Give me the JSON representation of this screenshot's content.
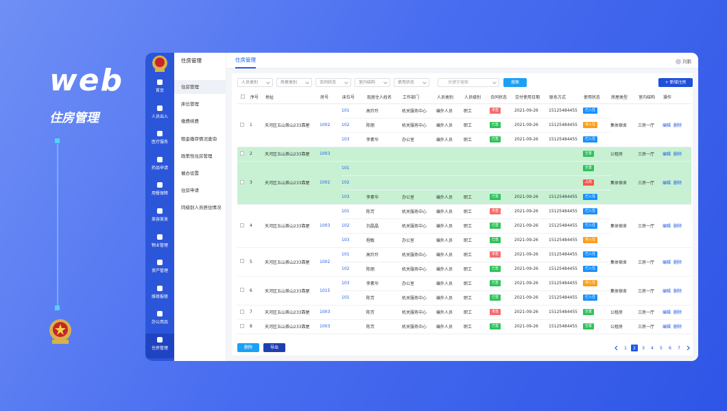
{
  "hero": {
    "title": "web",
    "subtitle": "住房管理"
  },
  "nav": [
    {
      "label": "首页"
    },
    {
      "label": "人员出入"
    },
    {
      "label": "医疗服务"
    },
    {
      "label": "药品申请"
    },
    {
      "label": "用餐保障"
    },
    {
      "label": "美容美发"
    },
    {
      "label": "物业管理"
    },
    {
      "label": "资产管理"
    },
    {
      "label": "维修报修"
    },
    {
      "label": "办公用品"
    },
    {
      "label": "住房管理",
      "active": true
    }
  ],
  "submenu": {
    "title": "住房管理",
    "items": [
      {
        "label": "住房管理",
        "active": true
      },
      {
        "label": "床位管理"
      },
      {
        "label": "缴费续费"
      },
      {
        "label": "租金缴存情况查询"
      },
      {
        "label": "政策性住房管理"
      },
      {
        "label": "催办设置"
      },
      {
        "label": "住房申请"
      },
      {
        "label": "同级别人员居住情况"
      }
    ]
  },
  "topbar": {
    "tab": "住房管理",
    "user": "刘鹏"
  },
  "filters": [
    "人员类别",
    "房屋类别",
    "合同状态",
    "室内结构",
    "使用状态"
  ],
  "search_placeholder": "关键字搜索",
  "search_button": "搜索",
  "add_button": "+ 新增住房",
  "tag_colors": {
    "未签": "#f56c6c",
    "已签": "#2fc25b",
    "已入住": "#1890ff",
    "待入住": "#fa9d1c",
    "空置": "#2fc25b",
    "占用": "#f5564a"
  },
  "table": {
    "headers": [
      "序号",
      "地址",
      "房号",
      "床位号",
      "现居住人姓名",
      "工作部门",
      "人员类别",
      "人员级别",
      "合同状态",
      "交付使用日期",
      "联系方式",
      "使用状态",
      "房屋类型",
      "室内结构",
      "操作"
    ],
    "groups": [
      {
        "index": 1,
        "address": "天河区五山茶山233靠屋",
        "room": "1002",
        "type": "集体宿舍",
        "structure": "三房一厅",
        "actions": [
          "编辑",
          "删除"
        ],
        "beds": [
          {
            "bed": "101",
            "name": "高玲玲",
            "dept": "机关服务中心",
            "category": "编外人员",
            "level": "职工",
            "contract": "未签",
            "date": "2021-09-26",
            "phone": "15125484455",
            "status": "已入住"
          },
          {
            "bed": "102",
            "name": "陈丽",
            "dept": "机关服务中心",
            "category": "编外人员",
            "level": "职工",
            "contract": "已签",
            "date": "2021-09-26",
            "phone": "15125484455",
            "status": "待入住"
          },
          {
            "bed": "103",
            "name": "李素华",
            "dept": "办公室",
            "category": "编外人员",
            "level": "职工",
            "contract": "已签",
            "date": "2021-09-26",
            "phone": "15125484455",
            "status": "已入住"
          }
        ]
      },
      {
        "index": 2,
        "address": "天河区五山茶山233靠屋",
        "room": "1003",
        "type": "公租房",
        "structure": "三房一厅",
        "actions": [
          "编辑",
          "删除"
        ],
        "highlight": true,
        "beds": [
          {
            "status": "空置"
          }
        ]
      },
      {
        "index": 3,
        "address": "天河区五山茶山233靠屋",
        "room": "1002",
        "type": "集体宿舍",
        "structure": "三房一厅",
        "actions": [
          "编辑",
          "删除"
        ],
        "highlight": true,
        "beds": [
          {
            "bed": "101",
            "status": "空置"
          },
          {
            "bed": "102",
            "status": "占用"
          },
          {
            "bed": "103",
            "name": "李素华",
            "dept": "办公室",
            "category": "编外人员",
            "level": "职工",
            "contract": "已签",
            "date": "2021-09-26",
            "phone": "15125484455",
            "status": "已入住"
          }
        ]
      },
      {
        "index": 4,
        "address": "天河区五山茶山233靠屋",
        "room": "1003",
        "type": "集体宿舍",
        "structure": "三房一厅",
        "actions": [
          "编辑",
          "删除"
        ],
        "beds": [
          {
            "bed": "101",
            "name": "陈芳",
            "dept": "机关服务中心",
            "category": "编外人员",
            "level": "职工",
            "contract": "未签",
            "date": "2021-09-26",
            "phone": "15125484455",
            "status": "已入住"
          },
          {
            "bed": "102",
            "name": "刘晶晶",
            "dept": "机关服务中心",
            "category": "编外人员",
            "level": "职工",
            "contract": "已签",
            "date": "2021-09-26",
            "phone": "15125484455",
            "status": "已入住"
          },
          {
            "bed": "103",
            "name": "程敏",
            "dept": "办公室",
            "category": "编外人员",
            "level": "职工",
            "contract": "已签",
            "date": "2021-09-26",
            "phone": "15125484455",
            "status": "待入住"
          }
        ]
      },
      {
        "index": 5,
        "address": "天河区五山茶山233靠屋",
        "room": "1002",
        "type": "集体宿舍",
        "structure": "三房一厅",
        "actions": [
          "编辑",
          "删除"
        ],
        "beds": [
          {
            "bed": "101",
            "name": "高玲玲",
            "dept": "机关服务中心",
            "category": "编外人员",
            "level": "职工",
            "contract": "未签",
            "date": "2021-09-26",
            "phone": "15125484455",
            "status": "已入住"
          },
          {
            "bed": "102",
            "name": "陈丽",
            "dept": "机关服务中心",
            "category": "编外人员",
            "level": "职工",
            "contract": "已签",
            "date": "2021-09-26",
            "phone": "15125484455",
            "status": "已入住"
          }
        ]
      },
      {
        "index": 6,
        "address": "天河区五山茶山233靠屋",
        "room": "1015",
        "type": "集体宿舍",
        "structure": "三房一厅",
        "actions": [
          "编辑",
          "删除"
        ],
        "beds": [
          {
            "bed": "103",
            "name": "李素华",
            "dept": "办公室",
            "category": "编外人员",
            "level": "职工",
            "contract": "已签",
            "date": "2021-09-26",
            "phone": "15125484455",
            "status": "待入住"
          },
          {
            "bed": "101",
            "name": "陈芳",
            "dept": "机关服务中心",
            "category": "编外人员",
            "level": "职工",
            "contract": "已签",
            "date": "2021-09-26",
            "phone": "15125484455",
            "status": "已入住"
          }
        ]
      },
      {
        "index": 7,
        "address": "天河区五山茶山233靠屋",
        "room": "1003",
        "type": "公租房",
        "structure": "三房一厅",
        "actions": [
          "编辑",
          "删除"
        ],
        "beds": [
          {
            "name": "陈芳",
            "dept": "机关服务中心",
            "category": "编外人员",
            "level": "职工",
            "contract": "未签",
            "date": "2021-09-26",
            "phone": "15125484455",
            "status": "空置"
          }
        ]
      },
      {
        "index": 8,
        "address": "天河区五山茶山233靠屋",
        "room": "1003",
        "type": "公租房",
        "structure": "三房一厅",
        "actions": [
          "编辑",
          "删除"
        ],
        "beds": [
          {
            "name": "陈芳",
            "dept": "机关服务中心",
            "category": "编外人员",
            "level": "职工",
            "contract": "已签",
            "date": "2021-09-26",
            "phone": "15125484455",
            "status": "空置"
          }
        ]
      }
    ]
  },
  "footer": {
    "buttons": [
      "删除",
      "导出"
    ],
    "pages": [
      1,
      2,
      3,
      4,
      5,
      6,
      7
    ],
    "current_page": 2
  }
}
